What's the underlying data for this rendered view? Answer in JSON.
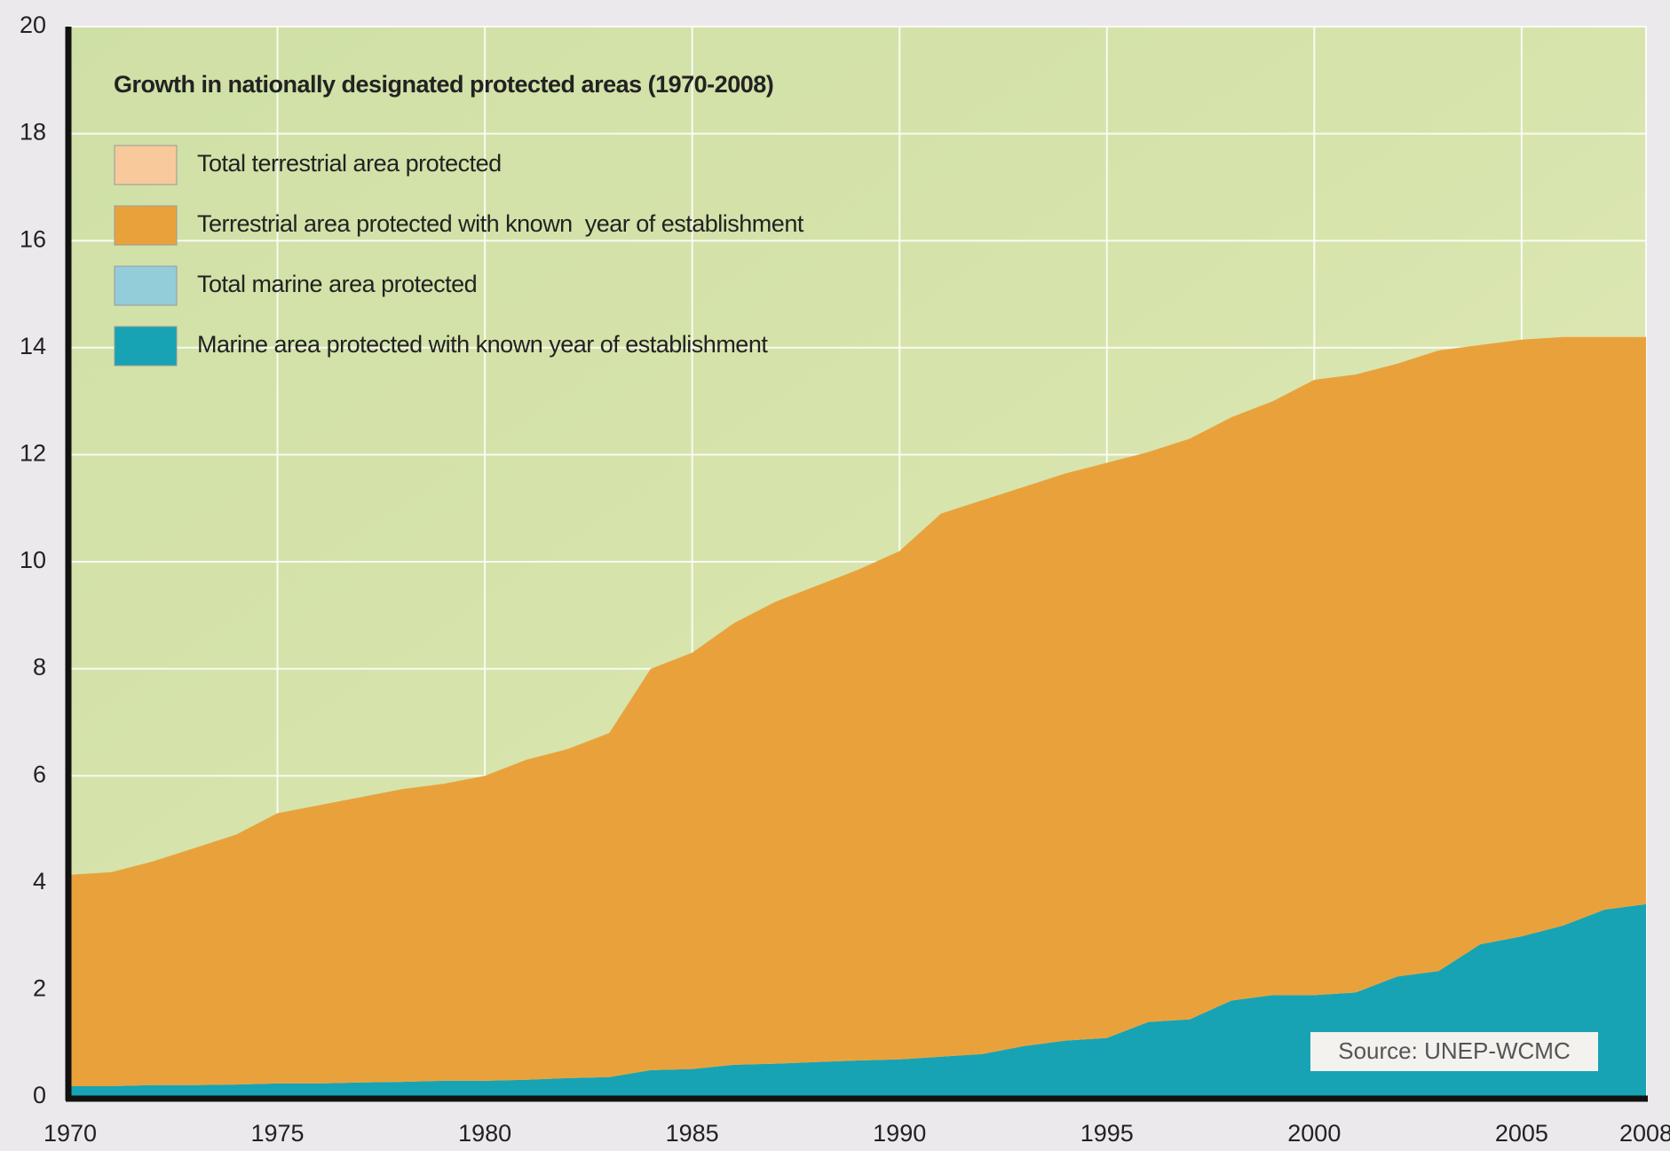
{
  "chart_data": {
    "type": "stacked_area",
    "title": "Growth in nationally designated protected areas (1970-2008)",
    "source": "Source: UNEP-WCMC",
    "x": [
      1970,
      1971,
      1972,
      1973,
      1974,
      1975,
      1976,
      1977,
      1978,
      1979,
      1980,
      1981,
      1982,
      1983,
      1984,
      1985,
      1986,
      1987,
      1988,
      1989,
      1990,
      1991,
      1992,
      1993,
      1994,
      1995,
      1996,
      1997,
      1998,
      1999,
      2000,
      2001,
      2002,
      2003,
      2004,
      2005,
      2006,
      2007,
      2008
    ],
    "series": [
      {
        "name": "Marine area protected with known year of establishment",
        "color": "#17a3b4",
        "values": [
          0.2,
          0.2,
          0.22,
          0.22,
          0.23,
          0.25,
          0.25,
          0.27,
          0.28,
          0.3,
          0.3,
          0.32,
          0.35,
          0.37,
          0.5,
          0.52,
          0.6,
          0.62,
          0.65,
          0.68,
          0.7,
          0.75,
          0.8,
          0.95,
          1.05,
          1.1,
          1.4,
          1.45,
          1.8,
          1.9,
          1.9,
          1.95,
          2.25,
          2.35,
          2.85,
          3.0,
          3.2,
          3.5,
          3.6
        ]
      },
      {
        "name": "Terrestrial area protected with known  year of establishment",
        "color": "#e9a23b",
        "values": [
          3.95,
          4.0,
          4.18,
          4.43,
          4.67,
          5.05,
          5.2,
          5.33,
          5.47,
          5.55,
          5.7,
          5.98,
          6.15,
          6.43,
          7.5,
          7.78,
          8.25,
          8.63,
          8.9,
          9.17,
          9.5,
          10.15,
          10.35,
          10.45,
          10.6,
          10.75,
          10.65,
          10.85,
          10.9,
          11.1,
          11.5,
          11.55,
          11.45,
          11.6,
          11.2,
          11.15,
          11.0,
          10.7,
          10.6
        ]
      }
    ],
    "other_legend_entries": [
      {
        "name": "Total terrestrial area protected",
        "color": "#f7c99b"
      },
      {
        "name": "Total marine area protected",
        "color": "#93cdd9"
      }
    ],
    "xlim": [
      1970,
      2008
    ],
    "xticks": [
      1970,
      1975,
      1980,
      1985,
      1990,
      1995,
      2000,
      2005,
      2008
    ],
    "ylim": [
      0,
      20
    ],
    "yticks": [
      0,
      2,
      4,
      6,
      8,
      10,
      12,
      14,
      16,
      18,
      20
    ],
    "grid": true
  }
}
